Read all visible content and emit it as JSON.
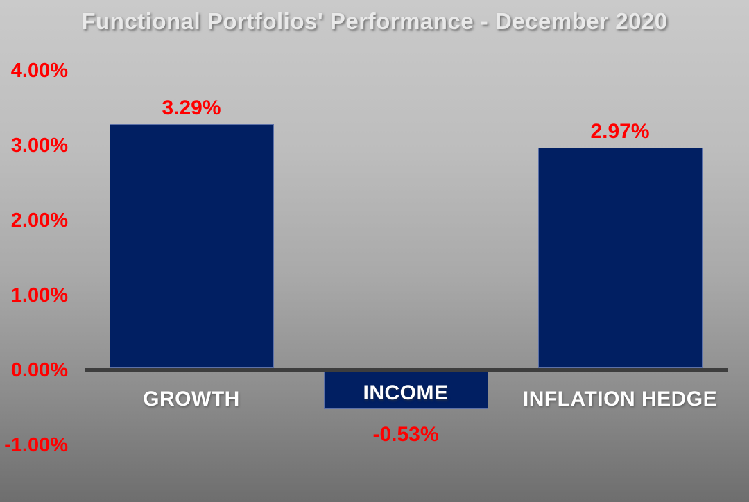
{
  "chart_data": {
    "type": "bar",
    "title": "Functional Portfolios' Performance - December 2020",
    "categories": [
      "GROWTH",
      "INCOME",
      "INFLATION HEDGE"
    ],
    "values": [
      3.29,
      -0.53,
      2.97
    ],
    "data_labels": [
      "3.29%",
      "-0.53%",
      "2.97%"
    ],
    "y_ticks": [
      "4.00%",
      "3.00%",
      "2.00%",
      "1.00%",
      "0.00%",
      "-1.00%"
    ],
    "y_tick_values": [
      4,
      3,
      2,
      1,
      0,
      -1
    ],
    "ylim": [
      -1.5,
      4.3
    ],
    "grid": false,
    "legend": false,
    "xlabel": "",
    "ylabel": "",
    "colors": {
      "bar": "#011f62",
      "bar_edge": "#5d71a8",
      "value_label": "#ff0000",
      "tick_label": "#ff0000",
      "category_label": "#ffffff",
      "axis_line": "#3d3d3d",
      "title": "#e9e9e9",
      "background_top": "#cacaca",
      "background_bottom": "#6e6e6e"
    }
  }
}
